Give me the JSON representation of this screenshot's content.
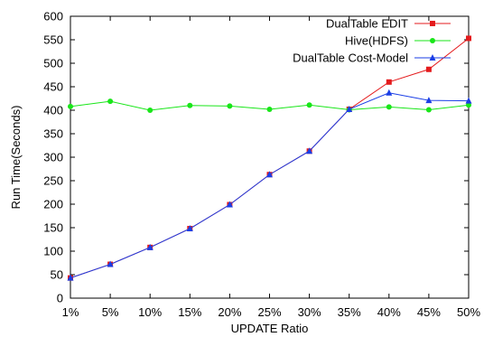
{
  "chart_data": {
    "type": "line",
    "xlabel": "UPDATE Ratio",
    "ylabel": "Run Time(Seconds)",
    "categories": [
      "1%",
      "5%",
      "10%",
      "15%",
      "20%",
      "25%",
      "30%",
      "35%",
      "40%",
      "45%",
      "50%"
    ],
    "ylim": [
      0,
      600
    ],
    "yticks": [
      0,
      50,
      100,
      150,
      200,
      250,
      300,
      350,
      400,
      450,
      500,
      550,
      600
    ],
    "grid": false,
    "legend_position": "top-right",
    "series": [
      {
        "name": "DualTable EDIT",
        "color": "#e41a1c",
        "marker": "square",
        "values": [
          43,
          72,
          108,
          148,
          199,
          263,
          313,
          402,
          460,
          487,
          553
        ]
      },
      {
        "name": "Hive(HDFS)",
        "color": "#19e619",
        "marker": "circle",
        "values": [
          408,
          419,
          400,
          410,
          409,
          402,
          411,
          401,
          407,
          401,
          411
        ]
      },
      {
        "name": "DualTable Cost-Model",
        "color": "#1a3ee6",
        "marker": "triangle",
        "values": [
          43,
          72,
          108,
          148,
          199,
          263,
          313,
          402,
          437,
          421,
          420
        ]
      }
    ]
  }
}
